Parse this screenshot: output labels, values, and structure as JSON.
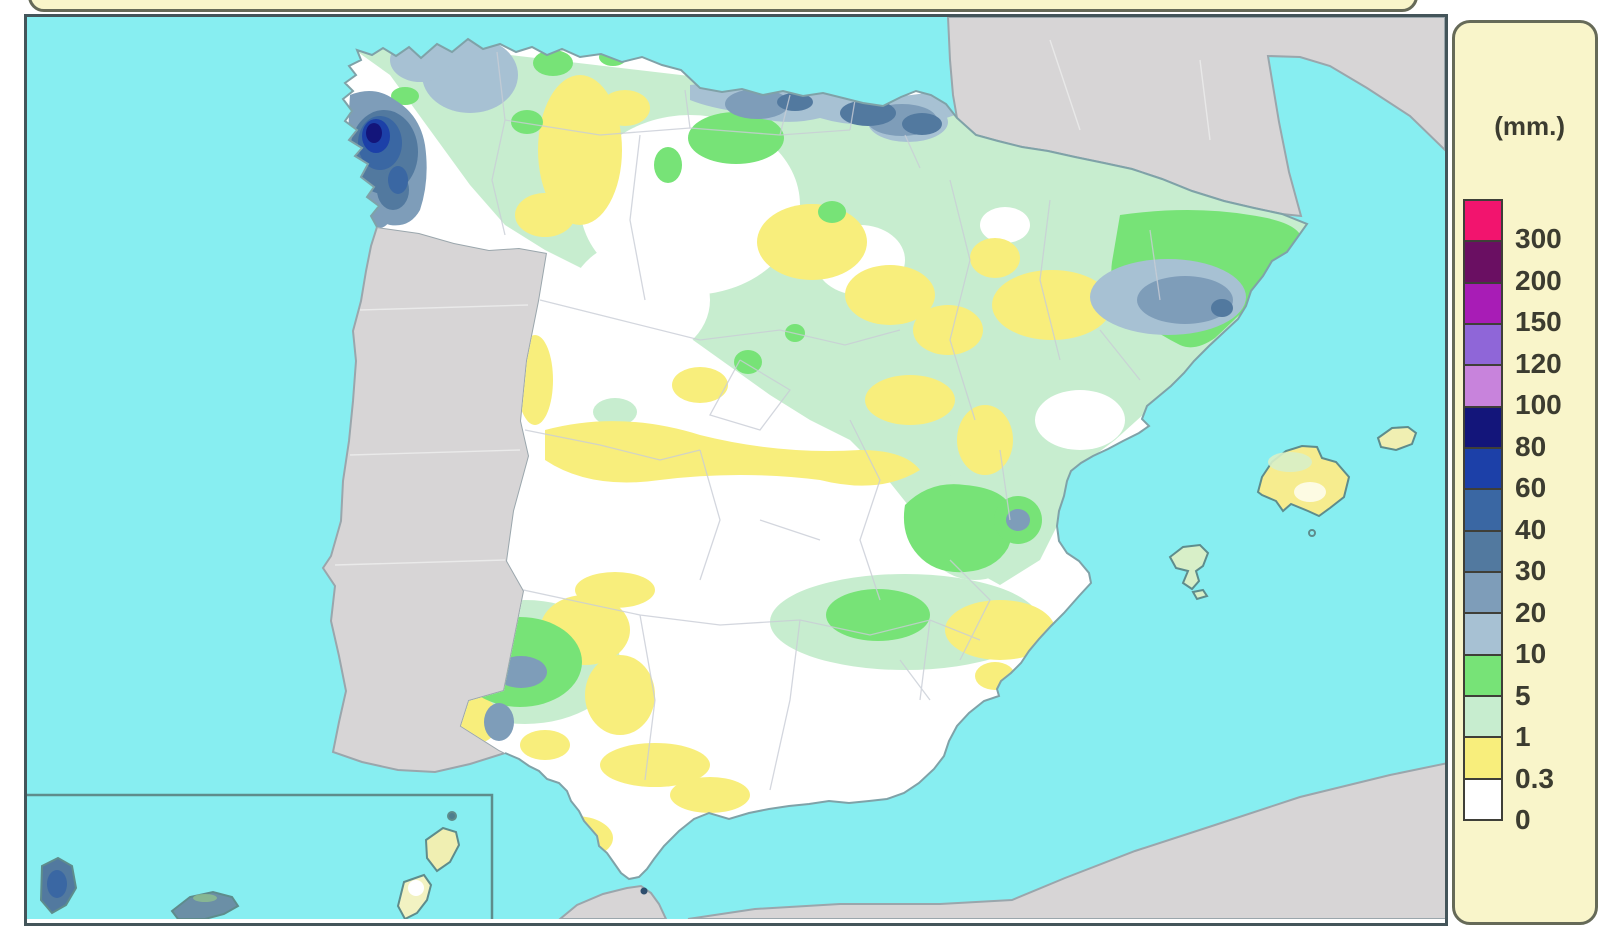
{
  "legend": {
    "unit_label": "(mm.)",
    "swatches": [
      {
        "label": "300",
        "color": "#F2146E"
      },
      {
        "label": "200",
        "color": "#6A0F62"
      },
      {
        "label": "150",
        "color": "#A81CB6"
      },
      {
        "label": "120",
        "color": "#8F66D8"
      },
      {
        "label": "100",
        "color": "#C883DC"
      },
      {
        "label": "80",
        "color": "#13157A"
      },
      {
        "label": "60",
        "color": "#1C40A8"
      },
      {
        "label": "40",
        "color": "#3A67A3"
      },
      {
        "label": "30",
        "color": "#52799F"
      },
      {
        "label": "20",
        "color": "#7E9DB9"
      },
      {
        "label": "10",
        "color": "#A7C1D3"
      },
      {
        "label": "5",
        "color": "#77E377"
      },
      {
        "label": "1",
        "color": "#C7EDCF"
      },
      {
        "label": "0.3",
        "color": "#F8EE7C"
      },
      {
        "label": "0",
        "color": "#FFFFFF"
      }
    ]
  },
  "map": {
    "features": [
      "sea",
      "spain-precipitation-field",
      "portugal",
      "france",
      "north-africa",
      "balearic-islands",
      "canary-islands-inset",
      "ceuta"
    ],
    "colors": {
      "sea": "#87EEF1",
      "other_land": "#D7D5D6",
      "coast": "#7FA2A8",
      "border_other": "#9AA6AC",
      "province_line": "#C9CDD6",
      "admin_white": "#EFEFEF",
      "map_border": "#44555A",
      "panel_bg": "#F9F5CA",
      "panel_border": "#666A58",
      "text": "#3C3C30",
      "inset_border": "#5E8C8C",
      "precip_0": "#FFFFFF",
      "precip_0_3": "#F8EE7C",
      "precip_1": "#C7EDCF",
      "precip_5": "#77E377",
      "precip_10": "#A7C1D3",
      "precip_20": "#7E9DB9",
      "precip_30": "#52799F",
      "precip_40": "#3A67A3",
      "precip_60": "#1C40A8",
      "precip_80": "#13157A",
      "island_yellow": "#F0EFB2",
      "island_mallorca": "#F6EC8E",
      "island_pale": "#D8EFC8"
    }
  }
}
